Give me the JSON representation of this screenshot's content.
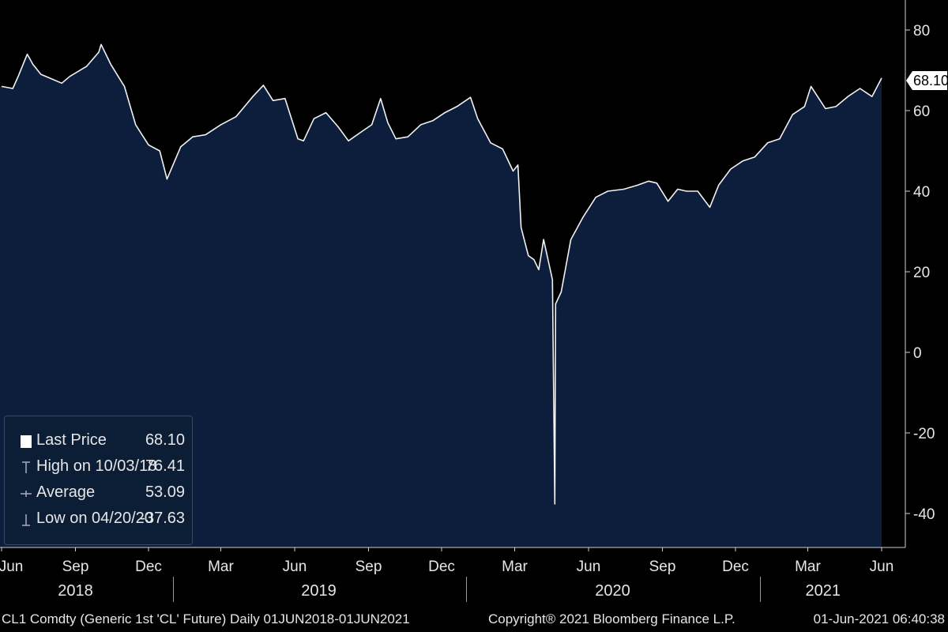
{
  "chart_data": {
    "type": "area",
    "series": [
      {
        "name": "CL1 Comdty",
        "x": [
          "2018-06-01",
          "2018-06-15",
          "2018-06-22",
          "2018-07-03",
          "2018-07-10",
          "2018-07-20",
          "2018-08-01",
          "2018-08-15",
          "2018-08-25",
          "2018-09-15",
          "2018-09-30",
          "2018-10-03",
          "2018-10-15",
          "2018-11-01",
          "2018-11-15",
          "2018-12-01",
          "2018-12-15",
          "2018-12-24",
          "2019-01-10",
          "2019-01-25",
          "2019-02-10",
          "2019-03-01",
          "2019-03-20",
          "2019-04-10",
          "2019-04-23",
          "2019-05-05",
          "2019-05-20",
          "2019-06-05",
          "2019-06-12",
          "2019-06-25",
          "2019-07-10",
          "2019-07-25",
          "2019-08-07",
          "2019-08-25",
          "2019-09-05",
          "2019-09-16",
          "2019-09-25",
          "2019-10-05",
          "2019-10-20",
          "2019-11-05",
          "2019-11-20",
          "2019-12-05",
          "2019-12-20",
          "2020-01-06",
          "2020-01-15",
          "2020-01-31",
          "2020-02-15",
          "2020-02-28",
          "2020-03-05",
          "2020-03-09",
          "2020-03-18",
          "2020-03-25",
          "2020-03-31",
          "2020-04-06",
          "2020-04-15",
          "2020-04-17",
          "2020-04-20",
          "2020-04-21",
          "2020-04-28",
          "2020-05-10",
          "2020-05-25",
          "2020-06-10",
          "2020-06-25",
          "2020-07-15",
          "2020-08-01",
          "2020-08-15",
          "2020-08-25",
          "2020-09-08",
          "2020-09-20",
          "2020-10-01",
          "2020-10-15",
          "2020-10-30",
          "2020-11-10",
          "2020-11-25",
          "2020-12-10",
          "2020-12-25",
          "2021-01-10",
          "2021-01-25",
          "2021-02-10",
          "2021-02-25",
          "2021-03-05",
          "2021-03-10",
          "2021-03-23",
          "2021-04-05",
          "2021-04-20",
          "2021-05-05",
          "2021-05-20",
          "2021-06-01"
        ],
        "y": [
          66.0,
          65.5,
          68.6,
          74.0,
          71.5,
          69.0,
          68.0,
          66.8,
          68.5,
          71.0,
          74.5,
          76.41,
          71.5,
          66.0,
          56.5,
          51.5,
          50.0,
          43.0,
          51.0,
          53.5,
          54.0,
          56.5,
          58.5,
          63.5,
          66.3,
          62.5,
          63.0,
          53.0,
          52.5,
          58.0,
          59.5,
          56.0,
          52.5,
          55.0,
          56.5,
          63.0,
          57.0,
          53.0,
          53.5,
          56.5,
          57.5,
          59.5,
          61.0,
          63.3,
          58.0,
          52.0,
          50.5,
          45.0,
          46.5,
          31.0,
          24.0,
          23.0,
          20.5,
          28.0,
          19.9,
          18.0,
          -37.63,
          12.0,
          15.0,
          28.0,
          33.5,
          38.5,
          40.0,
          40.5,
          41.5,
          42.5,
          42.0,
          37.5,
          40.5,
          40.0,
          40.0,
          36.0,
          41.5,
          45.5,
          47.5,
          48.5,
          52.0,
          53.0,
          59.0,
          61.0,
          66.0,
          64.5,
          60.5,
          61.0,
          63.5,
          65.5,
          63.5,
          68.1
        ]
      }
    ],
    "ylim": [
      -47,
      88
    ],
    "y_ticks": [
      "80",
      "60",
      "40",
      "20",
      "0",
      "-20",
      "-40"
    ],
    "y_tick_values": [
      80,
      60,
      40,
      20,
      0,
      -20,
      -40
    ],
    "x_ticks": [
      {
        "label": "Jun",
        "date": "2018-06-01"
      },
      {
        "label": "Sep",
        "date": "2018-09-01"
      },
      {
        "label": "Dec",
        "date": "2018-12-01"
      },
      {
        "label": "Mar",
        "date": "2019-03-01"
      },
      {
        "label": "Jun",
        "date": "2019-06-01"
      },
      {
        "label": "Sep",
        "date": "2019-09-01"
      },
      {
        "label": "Dec",
        "date": "2019-12-01"
      },
      {
        "label": "Mar",
        "date": "2020-03-01"
      },
      {
        "label": "Jun",
        "date": "2020-06-01"
      },
      {
        "label": "Sep",
        "date": "2020-09-01"
      },
      {
        "label": "Dec",
        "date": "2020-12-01"
      },
      {
        "label": "Mar",
        "date": "2021-03-01"
      },
      {
        "label": "Jun",
        "date": "2021-06-01"
      }
    ],
    "year_labels": [
      {
        "label": "2018",
        "date": "2018-09-01"
      },
      {
        "label": "2019",
        "date": "2019-07-01"
      },
      {
        "label": "2020",
        "date": "2020-07-01"
      },
      {
        "label": "2021",
        "date": "2021-03-20"
      }
    ],
    "last_value_tag": "68.10",
    "grid": false,
    "legend_position": "bottom-left"
  },
  "legend": {
    "items": [
      {
        "label": "Last Price",
        "value": "68.10"
      },
      {
        "label": "High on 10/03/18",
        "value": "76.41"
      },
      {
        "label": "Average",
        "value": "53.09"
      },
      {
        "label": "Low on 04/20/20",
        "value": "-37.63"
      }
    ]
  },
  "footer": {
    "ticker": "CL1 Comdty (Generic 1st 'CL' Future)  Daily 01JUN2018-01JUN2021",
    "copyright": "Copyright® 2021 Bloomberg Finance L.P.",
    "timestamp": "01-Jun-2021 06:40:38"
  },
  "colors": {
    "background": "#000000",
    "area_fill": "#0c1e3b",
    "line": "#f2f2f2",
    "text": "#e6e6e6"
  }
}
